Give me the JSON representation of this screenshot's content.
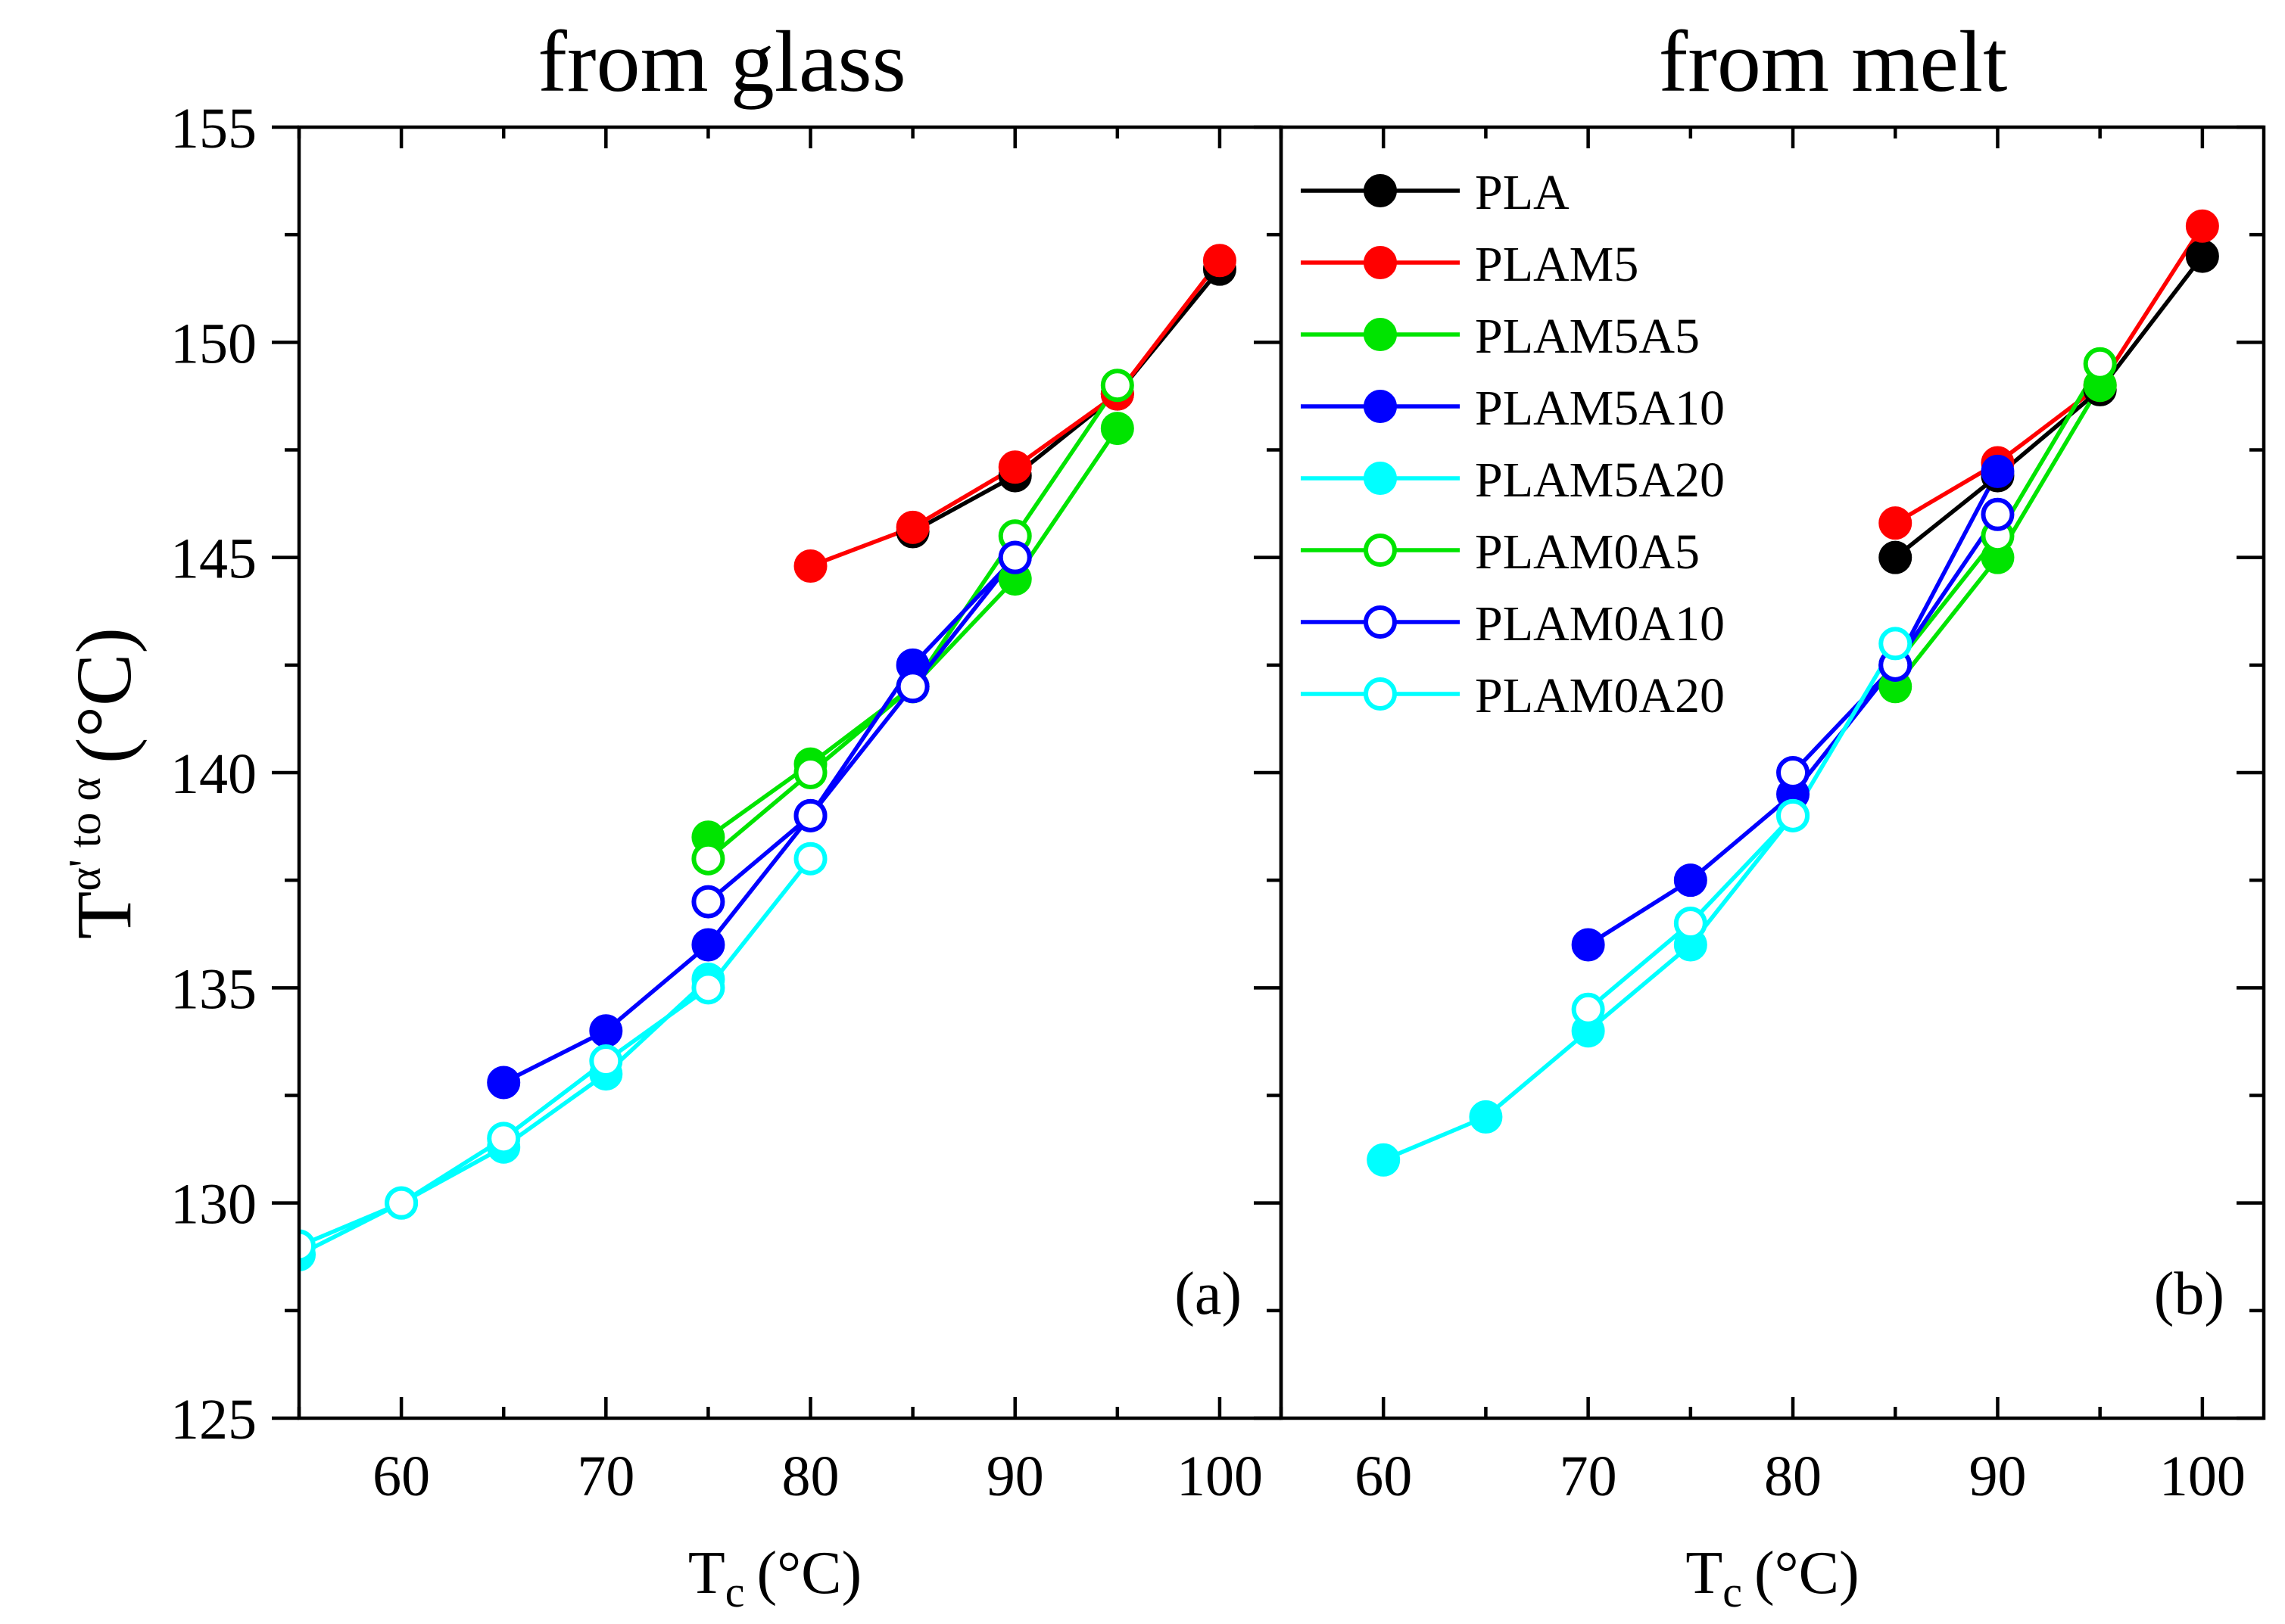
{
  "chart_data": {
    "type": "line",
    "y_label": {
      "main": "T",
      "superscript": "α' to α",
      "unit": "(°C)"
    },
    "x_label": {
      "main": "T",
      "subscript": "c",
      "unit": "(°C)"
    },
    "ylim": [
      125,
      155
    ],
    "yticks": [
      125,
      130,
      135,
      140,
      145,
      150,
      155
    ],
    "legend": {
      "placement": "top-left of panel (b)",
      "entries": [
        {
          "name": "PLA",
          "color": "#000000",
          "filled": true
        },
        {
          "name": "PLAM5",
          "color": "#ff0000",
          "filled": true
        },
        {
          "name": "PLAM5A5",
          "color": "#00e400",
          "filled": true
        },
        {
          "name": "PLAM5A10",
          "color": "#0000ff",
          "filled": true
        },
        {
          "name": "PLAM5A20",
          "color": "#00ffff",
          "filled": true
        },
        {
          "name": "PLAM0A5",
          "color": "#00e400",
          "filled": false
        },
        {
          "name": "PLAM0A10",
          "color": "#0000ff",
          "filled": false
        },
        {
          "name": "PLAM0A20",
          "color": "#00ffff",
          "filled": false
        }
      ]
    },
    "panels": [
      {
        "id": "a",
        "title": "from glass",
        "letter": "(a)",
        "xlim": [
          55,
          103
        ],
        "xticks": [
          60,
          70,
          80,
          90,
          100
        ],
        "series": [
          {
            "name": "PLA",
            "color": "#000000",
            "filled": true,
            "points": [
              [
                85,
                145.6
              ],
              [
                90,
                146.9
              ],
              [
                95,
                148.8
              ],
              [
                100,
                151.7
              ]
            ]
          },
          {
            "name": "PLAM5",
            "color": "#ff0000",
            "filled": true,
            "points": [
              [
                80,
                144.8
              ],
              [
                85,
                145.7
              ],
              [
                90,
                147.1
              ],
              [
                95,
                148.8
              ],
              [
                100,
                151.9
              ]
            ]
          },
          {
            "name": "PLAM5A5",
            "color": "#00e400",
            "filled": true,
            "points": [
              [
                75,
                138.5
              ],
              [
                80,
                140.2
              ],
              [
                85,
                142.0
              ],
              [
                90,
                144.5
              ],
              [
                95,
                148.0
              ]
            ]
          },
          {
            "name": "PLAM0A5",
            "color": "#00e400",
            "filled": false,
            "points": [
              [
                75,
                138.0
              ],
              [
                80,
                140.0
              ],
              [
                85,
                142.0
              ],
              [
                90,
                145.5
              ],
              [
                95,
                149.0
              ]
            ]
          },
          {
            "name": "PLAM5A10",
            "color": "#0000ff",
            "filled": true,
            "points": [
              [
                65,
                132.8
              ],
              [
                70,
                134.0
              ],
              [
                75,
                136.0
              ],
              [
                80,
                139.0
              ],
              [
                85,
                142.5
              ],
              [
                90,
                145.0
              ]
            ]
          },
          {
            "name": "PLAM0A10",
            "color": "#0000ff",
            "filled": false,
            "points": [
              [
                75,
                137.0
              ],
              [
                80,
                139.0
              ],
              [
                85,
                142.0
              ],
              [
                90,
                145.0
              ]
            ]
          },
          {
            "name": "PLAM5A20",
            "color": "#00ffff",
            "filled": true,
            "points": [
              [
                55,
                128.8
              ],
              [
                60,
                130.0
              ],
              [
                65,
                131.3
              ],
              [
                70,
                133.0
              ],
              [
                75,
                135.2
              ]
            ]
          },
          {
            "name": "PLAM0A20",
            "color": "#00ffff",
            "filled": false,
            "points": [
              [
                55,
                129.0
              ],
              [
                60,
                130.0
              ],
              [
                65,
                131.5
              ],
              [
                70,
                133.3
              ],
              [
                75,
                135.0
              ],
              [
                80,
                138.0
              ]
            ]
          }
        ]
      },
      {
        "id": "b",
        "title": "from melt",
        "letter": "(b)",
        "xlim": [
          55,
          103
        ],
        "xticks": [
          60,
          70,
          80,
          90,
          100
        ],
        "series": [
          {
            "name": "PLA",
            "color": "#000000",
            "filled": true,
            "points": [
              [
                85,
                145.0
              ],
              [
                90,
                146.9
              ],
              [
                95,
                148.9
              ],
              [
                100,
                152.0
              ]
            ]
          },
          {
            "name": "PLAM5",
            "color": "#ff0000",
            "filled": true,
            "points": [
              [
                85,
                145.8
              ],
              [
                90,
                147.2
              ],
              [
                95,
                149.0
              ],
              [
                100,
                152.7
              ]
            ]
          },
          {
            "name": "PLAM5A5",
            "color": "#00e400",
            "filled": true,
            "points": [
              [
                85,
                142.0
              ],
              [
                90,
                145.0
              ],
              [
                95,
                149.0
              ]
            ]
          },
          {
            "name": "PLAM0A5",
            "color": "#00e400",
            "filled": false,
            "points": [
              [
                85,
                142.5
              ],
              [
                90,
                145.5
              ],
              [
                95,
                149.5
              ]
            ]
          },
          {
            "name": "PLAM5A10",
            "color": "#0000ff",
            "filled": true,
            "points": [
              [
                70,
                136.0
              ],
              [
                75,
                137.5
              ],
              [
                80,
                139.5
              ],
              [
                85,
                142.5
              ],
              [
                90,
                147.0
              ]
            ]
          },
          {
            "name": "PLAM0A10",
            "color": "#0000ff",
            "filled": false,
            "points": [
              [
                80,
                140.0
              ],
              [
                85,
                142.5
              ],
              [
                90,
                146.0
              ]
            ]
          },
          {
            "name": "PLAM5A20",
            "color": "#00ffff",
            "filled": true,
            "points": [
              [
                60,
                131.0
              ],
              [
                65,
                132.0
              ],
              [
                70,
                134.0
              ],
              [
                75,
                136.0
              ],
              [
                80,
                139.0
              ]
            ]
          },
          {
            "name": "PLAM0A20",
            "color": "#00ffff",
            "filled": false,
            "points": [
              [
                70,
                134.5
              ],
              [
                75,
                136.5
              ],
              [
                80,
                139.0
              ],
              [
                85,
                143.0
              ]
            ]
          }
        ]
      }
    ]
  }
}
